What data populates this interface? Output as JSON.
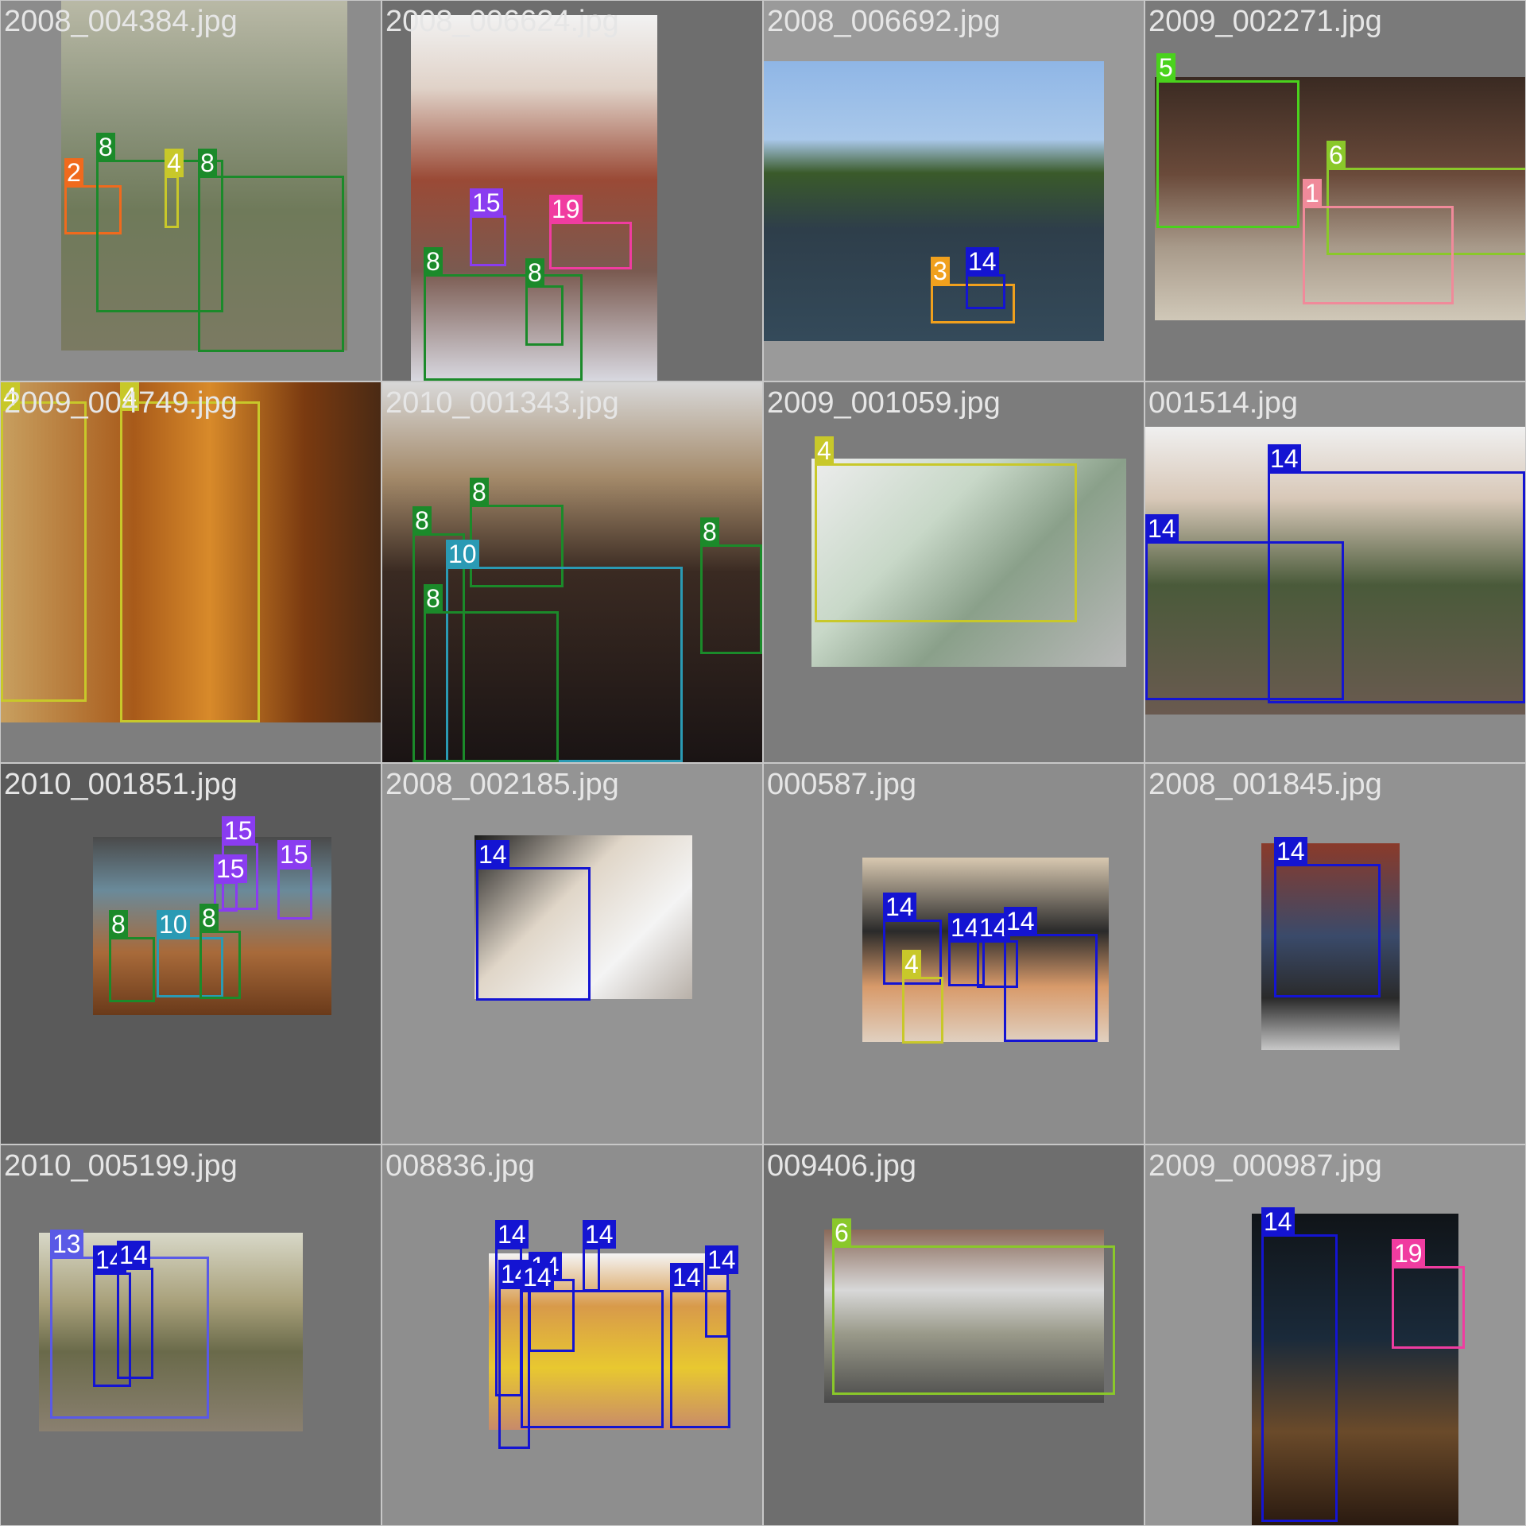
{
  "tiles": [
    {
      "filename": "2008_004384.jpg",
      "boxes": [
        {
          "label": "2",
          "color": "#f06a1d"
        },
        {
          "label": "8",
          "color": "#1b8a2a"
        },
        {
          "label": "4",
          "color": "#c8c82a"
        },
        {
          "label": "8",
          "color": "#1b8a2a"
        }
      ]
    },
    {
      "filename": "2008_006624.jpg",
      "boxes": [
        {
          "label": "15",
          "color": "#8a3cf0"
        },
        {
          "label": "19",
          "color": "#f03ca0"
        },
        {
          "label": "8",
          "color": "#1b8a2a"
        },
        {
          "label": "8",
          "color": "#1b8a2a"
        }
      ]
    },
    {
      "filename": "2008_006692.jpg",
      "boxes": [
        {
          "label": "3",
          "color": "#f0a01d"
        },
        {
          "label": "14",
          "color": "#1414d2"
        }
      ]
    },
    {
      "filename": "2009_002271.jpg",
      "boxes": [
        {
          "label": "5",
          "color": "#4ad21d"
        },
        {
          "label": "6",
          "color": "#8ac82a"
        },
        {
          "label": "1",
          "color": "#f08a9a"
        }
      ]
    },
    {
      "filename": "2009_004749.jpg",
      "boxes": [
        {
          "label": "4",
          "color": "#c8c82a"
        },
        {
          "label": "4",
          "color": "#c8c82a"
        }
      ]
    },
    {
      "filename": "2010_001343.jpg",
      "boxes": [
        {
          "label": "8",
          "color": "#1b8a2a"
        },
        {
          "label": "8",
          "color": "#1b8a2a"
        },
        {
          "label": "10",
          "color": "#2a9ab4"
        },
        {
          "label": "8",
          "color": "#1b8a2a"
        },
        {
          "label": "8",
          "color": "#1b8a2a"
        }
      ]
    },
    {
      "filename": "2009_001059.jpg",
      "boxes": [
        {
          "label": "4",
          "color": "#c8c82a"
        }
      ]
    },
    {
      "filename": "001514.jpg",
      "boxes": [
        {
          "label": "14",
          "color": "#1414d2"
        },
        {
          "label": "14",
          "color": "#1414d2"
        }
      ]
    },
    {
      "filename": "2010_001851.jpg",
      "boxes": [
        {
          "label": "15",
          "color": "#8a3cf0"
        },
        {
          "label": "15",
          "color": "#8a3cf0"
        },
        {
          "label": "15",
          "color": "#8a3cf0"
        },
        {
          "label": "8",
          "color": "#1b8a2a"
        },
        {
          "label": "10",
          "color": "#2a9ab4"
        },
        {
          "label": "8",
          "color": "#1b8a2a"
        }
      ]
    },
    {
      "filename": "2008_002185.jpg",
      "boxes": [
        {
          "label": "14",
          "color": "#1414d2"
        }
      ]
    },
    {
      "filename": "000587.jpg",
      "boxes": [
        {
          "label": "14",
          "color": "#1414d2"
        },
        {
          "label": "14",
          "color": "#1414d2"
        },
        {
          "label": "14",
          "color": "#1414d2"
        },
        {
          "label": "14",
          "color": "#1414d2"
        },
        {
          "label": "4",
          "color": "#c8c82a"
        }
      ]
    },
    {
      "filename": "2008_001845.jpg",
      "boxes": [
        {
          "label": "14",
          "color": "#1414d2"
        }
      ]
    },
    {
      "filename": "2010_005199.jpg",
      "boxes": [
        {
          "label": "13",
          "color": "#5a5ae6"
        },
        {
          "label": "14",
          "color": "#1414d2"
        },
        {
          "label": "14",
          "color": "#1414d2"
        }
      ]
    },
    {
      "filename": "008836.jpg",
      "boxes": [
        {
          "label": "14",
          "color": "#1414d2"
        },
        {
          "label": "14",
          "color": "#1414d2"
        },
        {
          "label": "14",
          "color": "#1414d2"
        },
        {
          "label": "14",
          "color": "#1414d2"
        },
        {
          "label": "14",
          "color": "#1414d2"
        },
        {
          "label": "14",
          "color": "#1414d2"
        },
        {
          "label": "14",
          "color": "#1414d2"
        }
      ]
    },
    {
      "filename": "009406.jpg",
      "boxes": [
        {
          "label": "6",
          "color": "#8ac82a"
        }
      ]
    },
    {
      "filename": "2009_000987.jpg",
      "boxes": [
        {
          "label": "14",
          "color": "#1414d2"
        },
        {
          "label": "19",
          "color": "#f03ca0"
        }
      ]
    }
  ]
}
